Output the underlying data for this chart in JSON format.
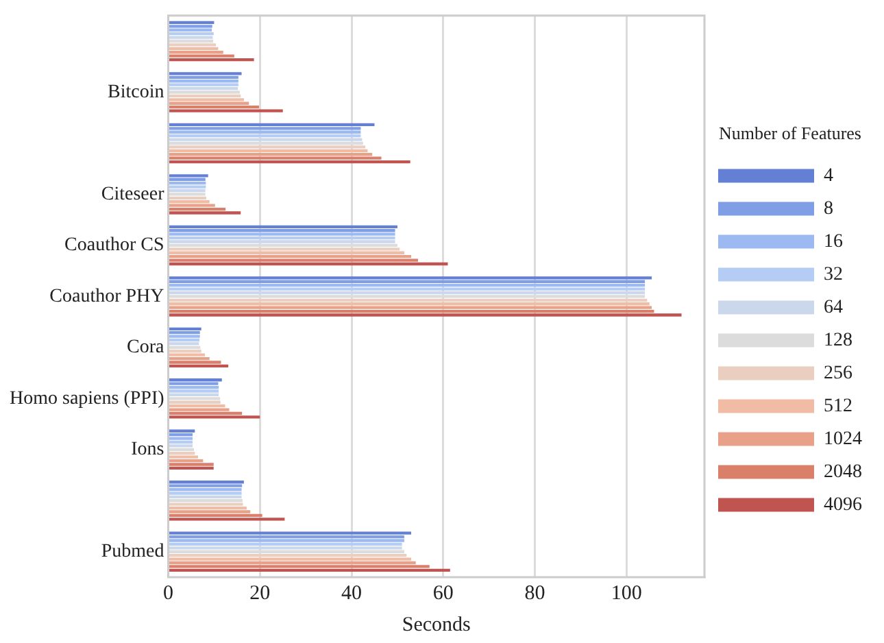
{
  "chart_data": {
    "type": "bar",
    "orientation": "horizontal",
    "xlabel": "Seconds",
    "legend_title": "Number of Features",
    "legend": "right",
    "grid": "x",
    "categories": [
      null,
      "Bitcoin",
      null,
      "Citeseer",
      "Coauthor CS",
      "Coauthor PHY",
      "Cora",
      "Homo sapiens (PPI)",
      "Ions",
      null,
      "Pubmed"
    ],
    "xlim": [
      0,
      117
    ],
    "xticks": [
      0,
      20,
      40,
      60,
      80,
      100
    ],
    "series": [
      {
        "name": "4",
        "color": "#6480d4",
        "values": [
          10.0,
          16.0,
          45,
          8.7,
          50,
          105.5,
          7.2,
          11.7,
          5.8,
          16.5,
          53
        ]
      },
      {
        "name": "8",
        "color": "#7f9ee6",
        "values": [
          9.6,
          15.3,
          42,
          8.1,
          49.5,
          104,
          6.9,
          10.9,
          5.3,
          16.1,
          51.5
        ]
      },
      {
        "name": "16",
        "color": "#9db9f2",
        "values": [
          9.5,
          15.3,
          42,
          8.2,
          49.5,
          104,
          6.9,
          11.0,
          5.3,
          16.0,
          51.5
        ]
      },
      {
        "name": "32",
        "color": "#b5cdf4",
        "values": [
          9.9,
          15.3,
          42,
          8.2,
          49.5,
          104,
          6.8,
          11.0,
          5.3,
          16.0,
          51
        ]
      },
      {
        "name": "64",
        "color": "#cbd7ea",
        "values": [
          9.7,
          15.2,
          42.3,
          8.1,
          49.5,
          104,
          6.7,
          11.0,
          5.3,
          16.0,
          51
        ]
      },
      {
        "name": "128",
        "color": "#dcdcdc",
        "values": [
          9.8,
          15.6,
          42.5,
          8.1,
          50,
          104,
          7.0,
          11.3,
          5.6,
          16.2,
          51.5
        ]
      },
      {
        "name": "256",
        "color": "#eacfc1",
        "values": [
          10.4,
          15.8,
          43,
          8.3,
          50.5,
          104.5,
          7.2,
          11.4,
          5.8,
          16.3,
          52
        ]
      },
      {
        "name": "512",
        "color": "#f0bca5",
        "values": [
          10.9,
          16.5,
          43.5,
          9.0,
          51.5,
          105,
          8.0,
          12.4,
          6.5,
          17.1,
          53
        ]
      },
      {
        "name": "1024",
        "color": "#e9a088",
        "values": [
          12.0,
          17.6,
          44.5,
          10.2,
          53,
          105.5,
          9.0,
          13.3,
          7.6,
          17.9,
          54
        ]
      },
      {
        "name": "2048",
        "color": "#d97f6a",
        "values": [
          14.4,
          19.8,
          46.5,
          12.5,
          54.5,
          106,
          11.5,
          16.1,
          9.9,
          20.5,
          57
        ]
      },
      {
        "name": "4096",
        "color": "#c05450",
        "values": [
          18.7,
          25.0,
          52.8,
          15.8,
          61,
          112,
          13.1,
          20.0,
          9.9,
          25.4,
          61.5
        ]
      }
    ]
  }
}
